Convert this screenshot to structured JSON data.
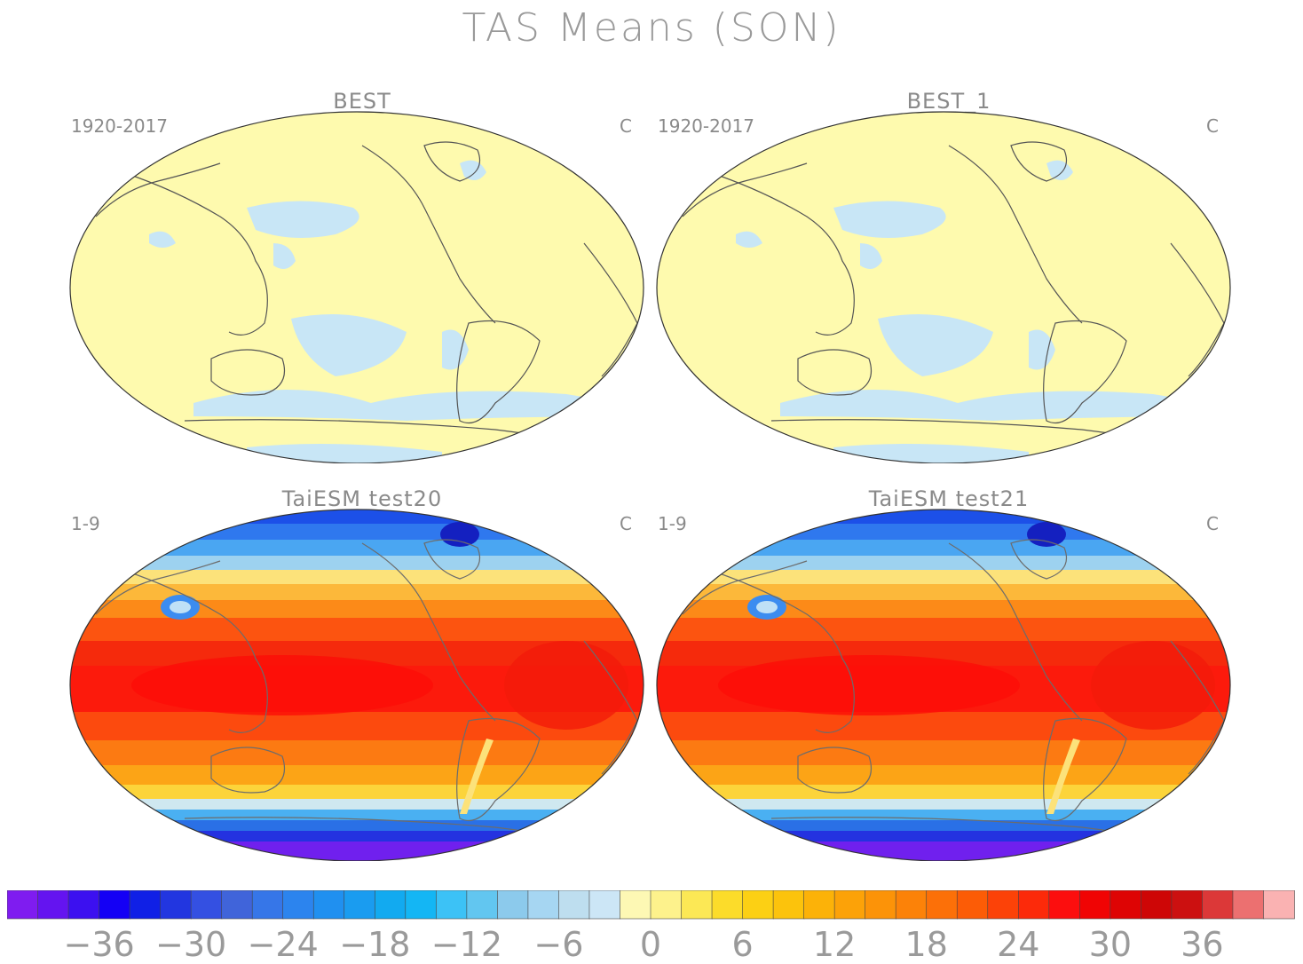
{
  "title": "TAS Means (SON)",
  "panels": [
    {
      "title": "BEST",
      "period": "1920-2017",
      "units": "C",
      "field": "obs"
    },
    {
      "title": "BEST_1",
      "period": "1920-2017",
      "units": "C",
      "field": "obs"
    },
    {
      "title": "TaiESM test20",
      "period": "1-9",
      "units": "C",
      "field": "model"
    },
    {
      "title": "TaiESM test21",
      "period": "1-9",
      "units": "C",
      "field": "model"
    }
  ],
  "colorbar": {
    "tick_labels": [
      "−36",
      "−30",
      "−24",
      "−18",
      "−12",
      "−6",
      "0",
      "6",
      "12",
      "18",
      "24",
      "30",
      "36"
    ],
    "tick_values": [
      -36,
      -30,
      -24,
      -18,
      -12,
      -6,
      0,
      6,
      12,
      18,
      24,
      30,
      36
    ],
    "range": [
      -42,
      42
    ],
    "colors": [
      "#7f1cf0",
      "#6414f0",
      "#3c10f0",
      "#1400f5",
      "#1020e6",
      "#2236e0",
      "#3450e2",
      "#4064da",
      "#3676e8",
      "#2c84ee",
      "#2090f0",
      "#1a9cf0",
      "#12aaf0",
      "#14b6f4",
      "#3cc2f6",
      "#62c6f0",
      "#8ccaec",
      "#a6d6f2",
      "#bedeef",
      "#cce6f6",
      "#fdf8b4",
      "#fdf28c",
      "#fce855",
      "#fcdc2a",
      "#fcd014",
      "#fcc30c",
      "#fcb208",
      "#fca208",
      "#fc9308",
      "#fc8208",
      "#fc7008",
      "#fc5c06",
      "#fc4208",
      "#fc2a0a",
      "#fc0e0e",
      "#f00404",
      "#de0404",
      "#ce0606",
      "#cc1010",
      "#dc3838",
      "#ec7070",
      "#fab2b2"
    ]
  },
  "colors": {
    "obs_background": "#fefaae",
    "obs_negative": "#c8e6f6",
    "coastline": "#555555",
    "model_coastline": "#6c6c6c"
  }
}
